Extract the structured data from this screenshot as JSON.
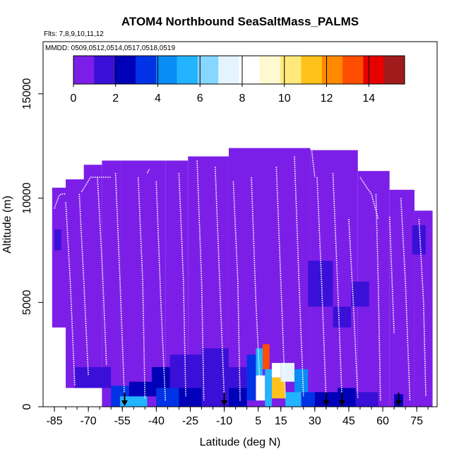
{
  "chart_data": {
    "type": "heatmap",
    "title": "ATOM4 Northbound SeaSaltMass_PALMS",
    "subtitle_flights": "Flts: 7,8,9,10,11,12",
    "subtitle_dates": "MMDD: 0509,0512,0514,0517,0518,0519",
    "xlabel": "Latitude (deg N)",
    "ylabel": "Altitude (m)",
    "xlim": [
      -90,
      84
    ],
    "ylim": [
      0,
      17500
    ],
    "x_ticks": [
      -85,
      -70,
      -55,
      -40,
      -25,
      -10,
      5,
      15,
      30,
      45,
      60,
      75
    ],
    "x_tick_labels": [
      "-85",
      "-70",
      "-55",
      "-40",
      "-25",
      "-10",
      "5",
      "15",
      "30",
      "45",
      "60",
      "75"
    ],
    "y_ticks": [
      0,
      5000,
      10000,
      15000
    ],
    "y_tick_labels": [
      "0",
      "5000",
      "10000",
      "15000"
    ],
    "colorbar": {
      "min": 0,
      "max": 15.7,
      "ticks": [
        0,
        2,
        4,
        6,
        8,
        10,
        12,
        14
      ],
      "tick_labels": [
        "0",
        "2",
        "4",
        "6",
        "8",
        "10",
        "12",
        "14"
      ],
      "colors": [
        "#7b1fe8",
        "#3a10d8",
        "#0000b8",
        "#0033e6",
        "#0a8cf5",
        "#22b4ff",
        "#86d6ff",
        "#e4f4ff",
        "#ffffff",
        "#fff8d0",
        "#ffe97a",
        "#ffc21a",
        "#ff8a00",
        "#ff4e00",
        "#e60000",
        "#a01b1b"
      ]
    },
    "background_value": 0.2,
    "coverage": [
      {
        "x0": -86,
        "x1": -77,
        "y0": 3800,
        "y1": 10500
      },
      {
        "x0": -80,
        "x1": -70,
        "y0": 900,
        "y1": 10900
      },
      {
        "x0": -72,
        "x1": -64,
        "y0": 900,
        "y1": 11600
      },
      {
        "x0": -64,
        "x1": -56,
        "y0": 0,
        "y1": 11800
      },
      {
        "x0": -56,
        "x1": -36,
        "y0": 0,
        "y1": 11800
      },
      {
        "x0": -36,
        "x1": -26,
        "y0": 0,
        "y1": 11800
      },
      {
        "x0": -26,
        "x1": -8,
        "y0": 0,
        "y1": 12000
      },
      {
        "x0": -8,
        "x1": 28,
        "y0": 0,
        "y1": 12400
      },
      {
        "x0": 28,
        "x1": 49,
        "y0": 0,
        "y1": 12300
      },
      {
        "x0": 49,
        "x1": 63,
        "y0": 0,
        "y1": 11300
      },
      {
        "x0": 63,
        "x1": 74,
        "y0": 0,
        "y1": 10400
      },
      {
        "x0": 74,
        "x1": 82,
        "y0": 0,
        "y1": 9400
      }
    ],
    "cells": [
      {
        "x0": -76,
        "x1": -60,
        "y0": 900,
        "y1": 1900,
        "v": 1.5
      },
      {
        "x0": -60,
        "x1": -52,
        "y0": 0,
        "y1": 1000,
        "v": 3.0
      },
      {
        "x0": -56,
        "x1": -44,
        "y0": 0,
        "y1": 500,
        "v": 5.0
      },
      {
        "x0": -52,
        "x1": -40,
        "y0": 500,
        "y1": 1200,
        "v": 2.0
      },
      {
        "x0": -42,
        "x1": -34,
        "y0": 900,
        "y1": 1900,
        "v": 2.2
      },
      {
        "x0": -40,
        "x1": -30,
        "y0": 0,
        "y1": 900,
        "v": 3.5
      },
      {
        "x0": -30,
        "x1": -20,
        "y0": 0,
        "y1": 900,
        "v": 2.5
      },
      {
        "x0": -34,
        "x1": -20,
        "y0": 900,
        "y1": 2500,
        "v": 1.3
      },
      {
        "x0": -20,
        "x1": -8,
        "y0": 0,
        "y1": 900,
        "v": 1.8
      },
      {
        "x0": -20,
        "x1": -8,
        "y0": 900,
        "y1": 2800,
        "v": 1.5
      },
      {
        "x0": -8,
        "x1": 0,
        "y0": 0,
        "y1": 900,
        "v": 2.5
      },
      {
        "x0": -8,
        "x1": 0,
        "y0": 900,
        "y1": 1900,
        "v": 1.9
      },
      {
        "x0": 0,
        "x1": 4,
        "y0": 300,
        "y1": 2500,
        "v": 3.8
      },
      {
        "x0": 4,
        "x1": 7,
        "y0": 1500,
        "y1": 2800,
        "v": 5.0
      },
      {
        "x0": 7,
        "x1": 10,
        "y0": 1800,
        "y1": 3000,
        "v": 13.0
      },
      {
        "x0": 4,
        "x1": 8,
        "y0": 300,
        "y1": 1500,
        "v": 8.8
      },
      {
        "x0": 8,
        "x1": 11,
        "y0": 0,
        "y1": 1800,
        "v": 5.0
      },
      {
        "x0": 11,
        "x1": 15,
        "y0": 1400,
        "y1": 2100,
        "v": 8.2
      },
      {
        "x0": 11,
        "x1": 17,
        "y0": 400,
        "y1": 1400,
        "v": 11.2
      },
      {
        "x0": 15,
        "x1": 21,
        "y0": 1200,
        "y1": 2100,
        "v": 7.0
      },
      {
        "x0": 21,
        "x1": 27,
        "y0": 700,
        "y1": 1800,
        "v": 4.5
      },
      {
        "x0": 17,
        "x1": 24,
        "y0": 0,
        "y1": 700,
        "v": 5.5
      },
      {
        "x0": 24,
        "x1": 30,
        "y0": 0,
        "y1": 700,
        "v": 3.5
      },
      {
        "x0": 30,
        "x1": 40,
        "y0": 0,
        "y1": 700,
        "v": 2.7
      },
      {
        "x0": 40,
        "x1": 48,
        "y0": 0,
        "y1": 900,
        "v": 2.3
      },
      {
        "x0": 27,
        "x1": 38,
        "y0": 4800,
        "y1": 7000,
        "v": 1.2
      },
      {
        "x0": 38,
        "x1": 46,
        "y0": 3800,
        "y1": 4800,
        "v": 1.5
      },
      {
        "x0": 46,
        "x1": 54,
        "y0": 4800,
        "y1": 6000,
        "v": 1.4
      },
      {
        "x0": 48,
        "x1": 58,
        "y0": 0,
        "y1": 700,
        "v": 1.6
      },
      {
        "x0": 65,
        "x1": 69,
        "y0": 0,
        "y1": 600,
        "v": 2.1
      },
      {
        "x0": 73,
        "x1": 79,
        "y0": 7300,
        "y1": 8700,
        "v": 1.3
      },
      {
        "x0": -85,
        "x1": -82,
        "y0": 7500,
        "y1": 8500,
        "v": 1.0
      }
    ],
    "flight_tracks": [
      {
        "lat": [
          -85,
          -83,
          -82,
          -80
        ],
        "alt": [
          9500,
          10100,
          10200,
          10200
        ]
      },
      {
        "lat": [
          -80,
          -78,
          -76
        ],
        "alt": [
          9800,
          6000,
          1000
        ]
      },
      {
        "lat": [
          -73,
          -69,
          -65,
          -60
        ],
        "alt": [
          10300,
          11000,
          11000,
          11000
        ]
      },
      {
        "lat": [
          -74,
          -72,
          -70
        ],
        "alt": [
          10200,
          6000,
          1500
        ]
      },
      {
        "lat": [
          -66,
          -64,
          -62
        ],
        "alt": [
          11000,
          7000,
          2000
        ]
      },
      {
        "lat": [
          -58,
          -56,
          -54
        ],
        "alt": [
          11200,
          6000,
          300
        ]
      },
      {
        "lat": [
          -48,
          -46,
          -45
        ],
        "alt": [
          11000,
          6000,
          400
        ]
      },
      {
        "lat": [
          -44,
          -43
        ],
        "alt": [
          11200,
          11400
        ]
      },
      {
        "lat": [
          -40,
          -38,
          -36
        ],
        "alt": [
          10800,
          5000,
          300
        ]
      },
      {
        "lat": [
          -30,
          -28,
          -27
        ],
        "alt": [
          11200,
          6000,
          500
        ]
      },
      {
        "lat": [
          -22,
          -20,
          -19
        ],
        "alt": [
          11800,
          6000,
          300
        ]
      },
      {
        "lat": [
          -14,
          -12,
          -10
        ],
        "alt": [
          11500,
          6000,
          400
        ]
      },
      {
        "lat": [
          -6,
          -4,
          -3
        ],
        "alt": [
          10800,
          6000,
          300
        ]
      },
      {
        "lat": [
          2,
          4,
          6
        ],
        "alt": [
          11000,
          5000,
          500
        ]
      },
      {
        "lat": [
          13,
          15,
          17
        ],
        "alt": [
          11500,
          6000,
          400
        ]
      },
      {
        "lat": [
          21,
          23,
          25
        ],
        "alt": [
          12000,
          6000,
          500
        ]
      },
      {
        "lat": [
          27,
          28,
          30
        ],
        "alt": [
          12800,
          12900,
          11000
        ]
      },
      {
        "lat": [
          31,
          33,
          35
        ],
        "alt": [
          11000,
          6000,
          300
        ]
      },
      {
        "lat": [
          38,
          40,
          42
        ],
        "alt": [
          11200,
          6000,
          400
        ]
      },
      {
        "lat": [
          45,
          47,
          49
        ],
        "alt": [
          9000,
          5000,
          400
        ]
      },
      {
        "lat": [
          50,
          53,
          55,
          58
        ],
        "alt": [
          11000,
          10500,
          10200,
          9000
        ]
      },
      {
        "lat": [
          57,
          58,
          59
        ],
        "alt": [
          10200,
          6000,
          300
        ]
      },
      {
        "lat": [
          63,
          65
        ],
        "alt": [
          9100,
          3500
        ]
      },
      {
        "lat": [
          68,
          70,
          72
        ],
        "alt": [
          10000,
          6000,
          300
        ]
      },
      {
        "lat": [
          76,
          78,
          79
        ],
        "alt": [
          9000,
          5000,
          500
        ]
      }
    ],
    "arrow_positions": [
      -54,
      -10,
      35,
      42,
      67
    ]
  }
}
